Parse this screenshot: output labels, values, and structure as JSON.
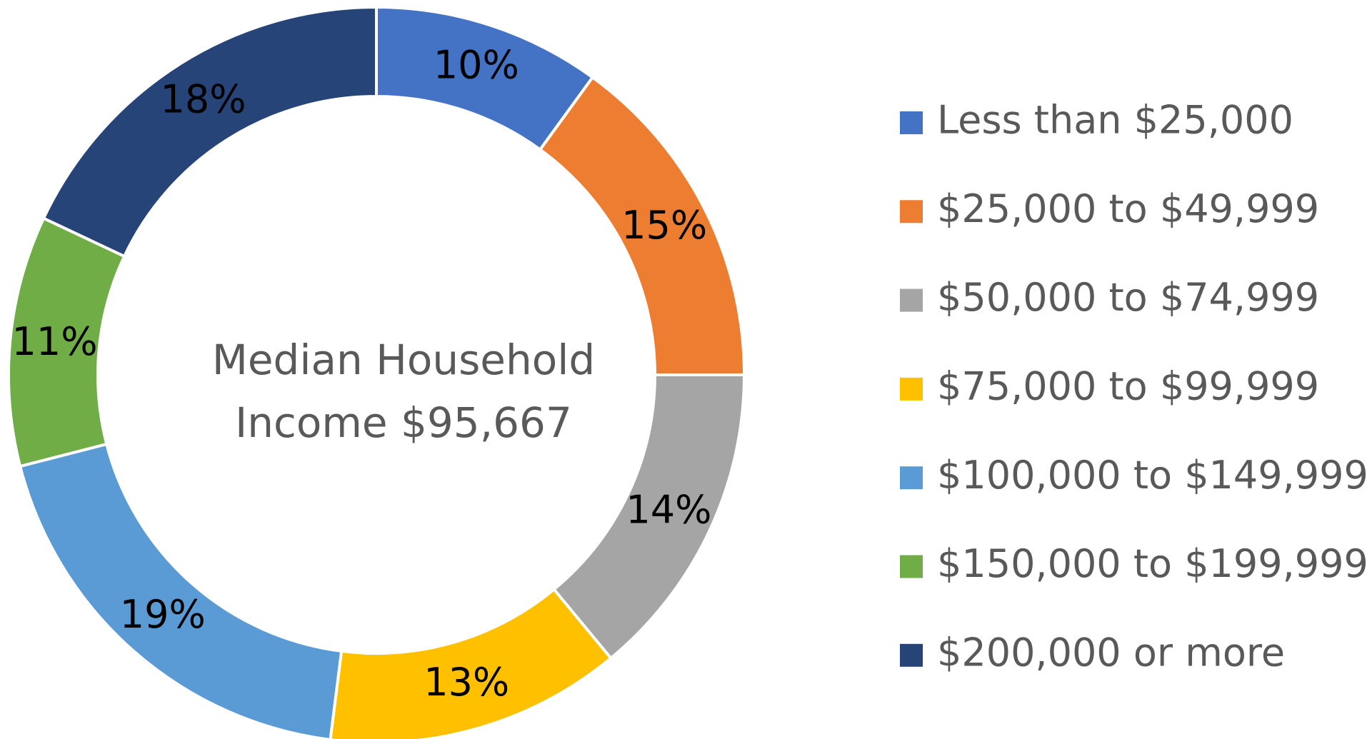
{
  "chart_data": {
    "type": "donut",
    "center_text": [
      "Median Household",
      "Income $95,667"
    ],
    "categories": [
      "Less than $25,000",
      "$25,000 to $49,999",
      "$50,000 to $74,999",
      "$75,000 to $99,999",
      "$100,000 to $149,999",
      "$150,000 to $199,999",
      "$200,000 or more"
    ],
    "values": [
      10,
      15,
      14,
      13,
      19,
      11,
      18
    ],
    "value_labels": [
      "10%",
      "15%",
      "14%",
      "13%",
      "19%",
      "11%",
      "18%"
    ],
    "colors": [
      "#4472c4",
      "#ed7d31",
      "#a5a5a5",
      "#ffc000",
      "#5b9bd5",
      "#70ad47",
      "#264478"
    ],
    "legend": "right"
  }
}
